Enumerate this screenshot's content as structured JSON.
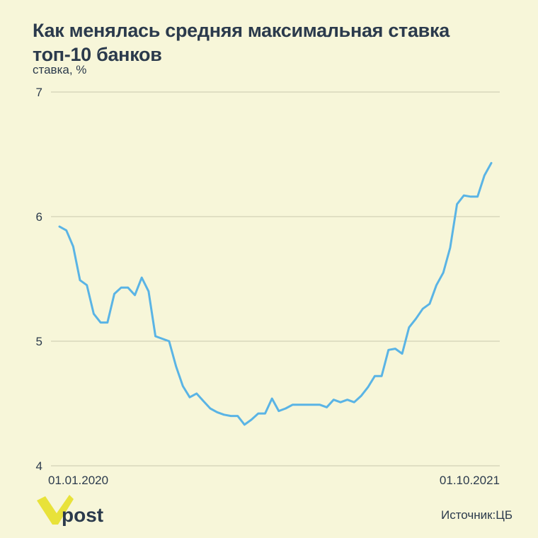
{
  "title_lines": [
    "Как менялась средняя максимальная ставка",
    "топ-10 банков"
  ],
  "subtitle": "ставка, %",
  "source": "Источник:ЦБ",
  "brand": "post",
  "colors": {
    "background": "#f7f6d9",
    "line": "#5ab4e5",
    "grid": "#c9c8ad",
    "text": "#2b3a4c",
    "logo_mark": "#e8e23a"
  },
  "chart_data": {
    "type": "line",
    "title": "Как менялась средняя максимальная ставка топ-10 банков",
    "ylabel": "ставка, %",
    "xlabel": "",
    "ylim": [
      4,
      7
    ],
    "yticks": [
      "4",
      "5",
      "6",
      "7"
    ],
    "xtick_labels": [
      "01.01.2020",
      "01.10.2021"
    ],
    "grid": true,
    "series": [
      {
        "values": [
          5.92,
          5.89,
          5.76,
          5.49,
          5.45,
          5.22,
          5.15,
          5.15,
          5.38,
          5.43,
          5.43,
          5.37,
          5.51,
          5.4,
          5.04,
          5.02,
          5.0,
          4.8,
          4.64,
          4.55,
          4.58,
          4.52,
          4.46,
          4.43,
          4.41,
          4.4,
          4.4,
          4.33,
          4.37,
          4.42,
          4.42,
          4.54,
          4.44,
          4.46,
          4.49,
          4.49,
          4.49,
          4.49,
          4.49,
          4.47,
          4.53,
          4.51,
          4.53,
          4.51,
          4.56,
          4.63,
          4.72,
          4.72,
          4.93,
          4.94,
          4.9,
          5.11,
          5.18,
          5.26,
          5.3,
          5.45,
          5.55,
          5.75,
          6.1,
          6.17,
          6.16,
          6.16,
          6.33,
          6.43
        ]
      }
    ]
  }
}
